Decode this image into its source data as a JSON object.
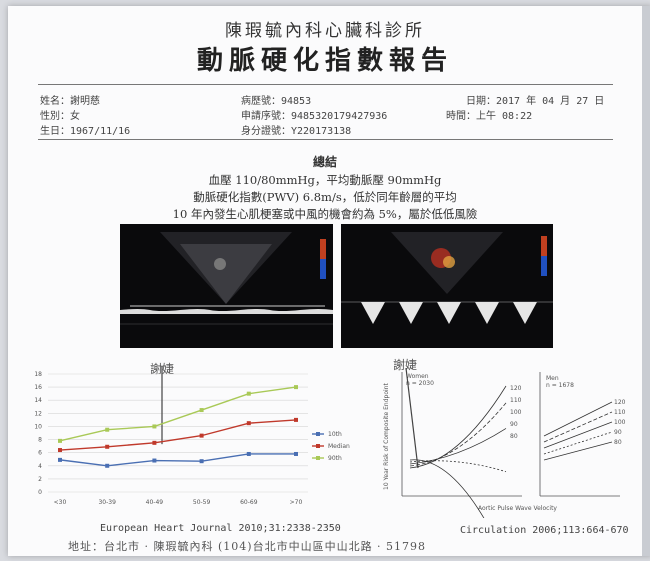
{
  "header": {
    "clinic": "陳瑕毓內科心臟科診所",
    "title": "動脈硬化指數報告"
  },
  "patient": {
    "name": "姓名：謝明慈",
    "gender": "性別：女",
    "birth": "生日：1967/11/16",
    "record_no": "病歷號：94853",
    "serial_no": "申請序號：9485320179427936",
    "id_no": "身分證號：Y220173138",
    "date": "日期：2017 年 04 月 27 日",
    "time": "時間：上午 08:22"
  },
  "summary": {
    "heading": "總結",
    "line1": "血壓 110/80mmHg，平均動脈壓 90mmHg",
    "line2": "動脈硬化指數(PWV) 6.8m/s，低於同年齡層的平均",
    "line3": "10 年內發生心肌梗塞或中風的機會約為 5%，屬於低低風險"
  },
  "chart_left": {
    "annotation": "謝婕",
    "source": "European Heart Journal 2010;31:2338-2350"
  },
  "chart_right": {
    "annotation": "謝婕",
    "source": "Circulation 2006;113:664-670",
    "ylabel": "10 Year Risk of Composite Endpoint",
    "xlabel": "Aortic Pulse Wave Velocity",
    "panel1_label": "Women",
    "panel1_sub": "n = 2030",
    "panel2_label": "Men",
    "panel2_sub": "n = 1678",
    "curve_labels": [
      "120",
      "110",
      "100",
      "90",
      "80"
    ]
  },
  "footer": {
    "text": "地址：台北市 · 陳瑕毓內科    (104)台北市中山區中山北路 · 51798"
  },
  "chart_data": [
    {
      "type": "line",
      "categories": [
        "<30",
        "30-39",
        "40-49",
        "50-59",
        "60-69",
        ">70"
      ],
      "ylim": [
        0,
        18
      ],
      "yticks": [
        "0",
        "2",
        "4",
        "6",
        "8",
        "10",
        "12",
        "14",
        "16",
        "18"
      ],
      "series": [
        {
          "name": "10th",
          "color": "#4a6fb3",
          "values": [
            4.9,
            4.0,
            4.8,
            4.7,
            5.8,
            5.8
          ]
        },
        {
          "name": "Median",
          "color": "#c0392b",
          "values": [
            6.4,
            6.9,
            7.5,
            8.6,
            10.5,
            11.0
          ]
        },
        {
          "name": "90th",
          "color": "#a9c957",
          "values": [
            7.8,
            9.5,
            10.0,
            12.5,
            15.0,
            16.0
          ]
        }
      ],
      "legend_placement": "right",
      "grid": true
    }
  ]
}
